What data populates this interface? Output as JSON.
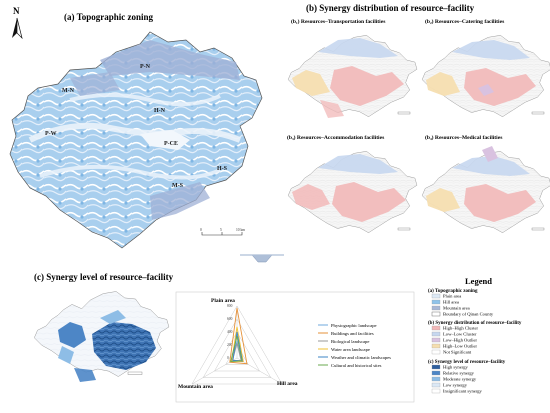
{
  "panel_a": {
    "title": "(a) Topographic zoning",
    "north": "N",
    "zones": [
      "P-N",
      "M-N",
      "H-N",
      "P-W",
      "P-CE",
      "H-S",
      "M-S"
    ],
    "scale": [
      "0",
      "5",
      "10 km"
    ]
  },
  "panel_b": {
    "title": "(b) Synergy distribution of resource–facility",
    "b1": "(b₁) Resources–Transportation facilities",
    "b2": "(b₂) Resources–Catering facilities",
    "b3": "(b₃) Resources–Accommodation facilities",
    "b4": "(b₄) Resources–Medical facilities"
  },
  "panel_c": {
    "title": "(c) Synergy level of resource–facility",
    "radar_axes": [
      "Plain area",
      "Mountain area",
      "Hill area"
    ],
    "radar_ticks": [
      "0",
      "200",
      "400",
      "600",
      "800"
    ],
    "radar_legend": [
      {
        "name": "Physiographic landscape",
        "color": "#6fa8dc"
      },
      {
        "name": "Buildings and facilities",
        "color": "#e69138"
      },
      {
        "name": "Biological landscape",
        "color": "#999999"
      },
      {
        "name": "Water area landscape",
        "color": "#f1c232"
      },
      {
        "name": "Weather and climatic landscapes",
        "color": "#3d85c6"
      },
      {
        "name": "Cultural and historical sites",
        "color": "#6aa84f"
      }
    ]
  },
  "legend": {
    "title": "Legend",
    "a_head": "(a) Topographic zoning",
    "a_items": [
      {
        "label": "Plain area",
        "color": "#dde9f5"
      },
      {
        "label": "Hill area",
        "color": "#8fc3ea"
      },
      {
        "label": "Mountain area",
        "color": "#a9b8d6"
      },
      {
        "label": "Boundary of Qinan County",
        "color": "#ffffff"
      }
    ],
    "b_head": "(b) Synergy distribution of resource–facility",
    "b_items": [
      {
        "label": "High–High Cluster",
        "color": "#f2b8b8"
      },
      {
        "label": "Low–Low Cluster",
        "color": "#c6d7ef"
      },
      {
        "label": "Low–High Outlier",
        "color": "#d9c2e0"
      },
      {
        "label": "High–Low Outlier",
        "color": "#f5deb0"
      },
      {
        "label": "Not Significant",
        "color": "#ffffff"
      }
    ],
    "c_head": "(c) Synergy level of resource–facility",
    "c_items": [
      {
        "label": "High synergy",
        "color": "#2f5f9e"
      },
      {
        "label": "Relative synergy",
        "color": "#4d86c6"
      },
      {
        "label": "Moderate synergy",
        "color": "#8ebde6"
      },
      {
        "label": "Low synergy",
        "color": "#dbe8f5"
      },
      {
        "label": "Insignificant synergy",
        "color": "#ffffff"
      }
    ]
  }
}
